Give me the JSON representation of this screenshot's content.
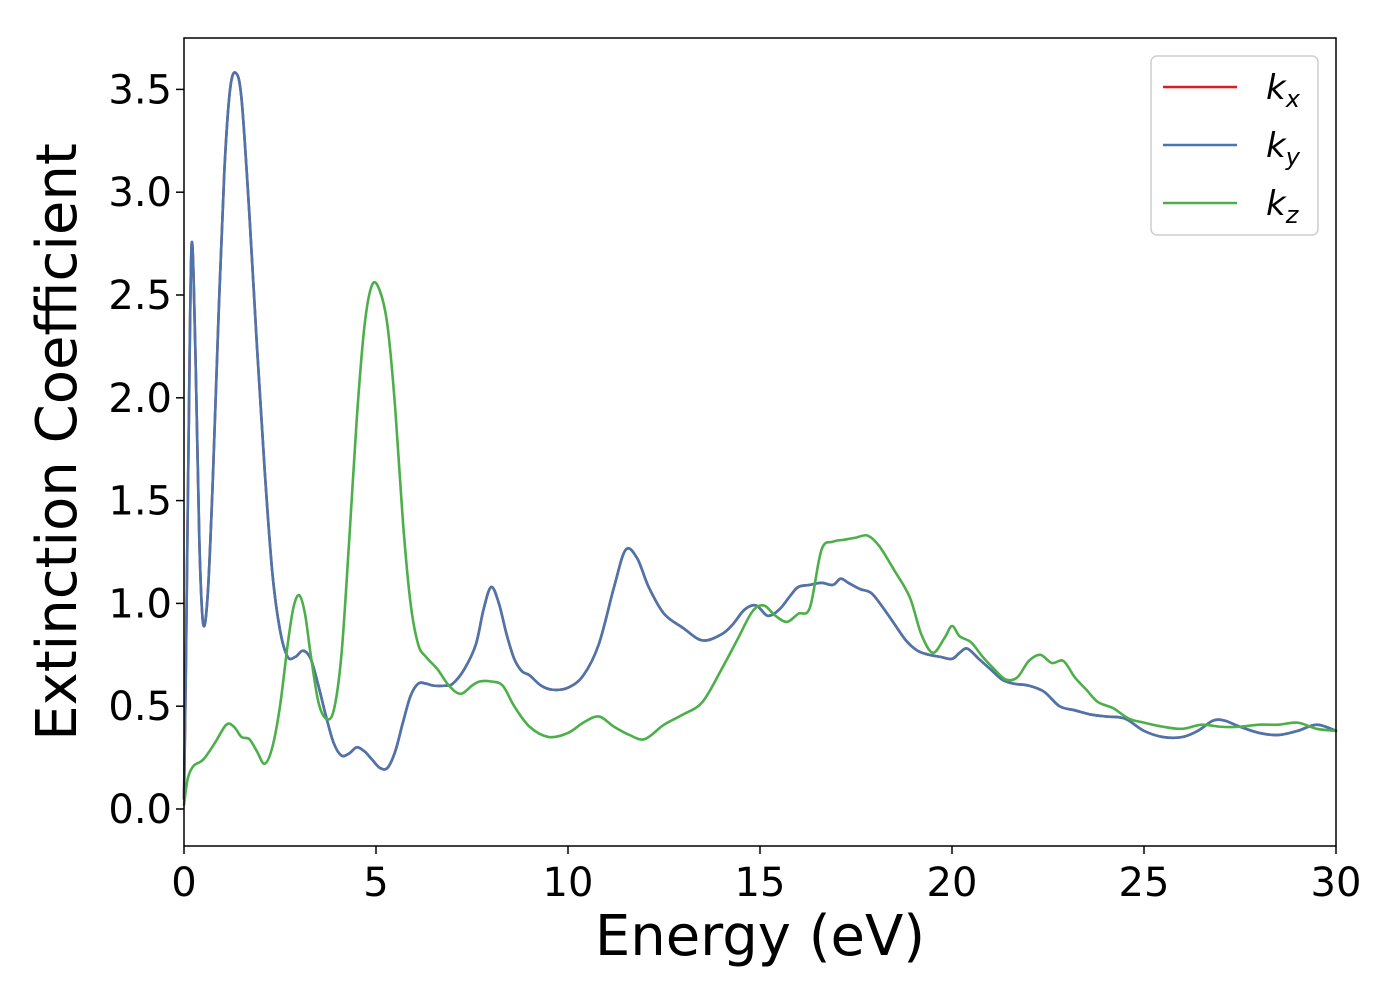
{
  "chart_data": {
    "type": "line",
    "title": "",
    "xlabel": "Energy (eV)",
    "ylabel": "Extinction Coefficient",
    "xlim": [
      0,
      30
    ],
    "ylim": [
      -0.18,
      3.75
    ],
    "xticks": [
      0,
      5,
      10,
      15,
      20,
      25,
      30
    ],
    "xtick_labels": [
      "0",
      "5",
      "10",
      "15",
      "20",
      "25",
      "30"
    ],
    "yticks": [
      0.0,
      0.5,
      1.0,
      1.5,
      2.0,
      2.5,
      3.0,
      3.5
    ],
    "ytick_labels": [
      "0.0",
      "0.5",
      "1.0",
      "1.5",
      "2.0",
      "2.5",
      "3.0",
      "3.5"
    ],
    "grid": false,
    "legend_position": "top-right",
    "series": [
      {
        "name": "k_x",
        "legend_base": "k",
        "legend_sub": "x",
        "color": "#e41a1c",
        "x": [
          0,
          0.05,
          0.12,
          0.2,
          0.3,
          0.4,
          0.5,
          0.62,
          0.75,
          0.9,
          1.05,
          1.2,
          1.35,
          1.5,
          1.7,
          1.9,
          2.1,
          2.3,
          2.5,
          2.7,
          2.9,
          3.1,
          3.3,
          3.5,
          3.7,
          3.9,
          4.1,
          4.3,
          4.5,
          4.7,
          4.9,
          5.1,
          5.3,
          5.5,
          5.7,
          5.9,
          6.1,
          6.3,
          6.5,
          6.8,
          7.0,
          7.3,
          7.6,
          7.8,
          8.0,
          8.2,
          8.4,
          8.6,
          8.8,
          9.0,
          9.3,
          9.6,
          10.0,
          10.4,
          10.8,
          11.2,
          11.5,
          11.8,
          12.1,
          12.5,
          13.0,
          13.5,
          14.0,
          14.3,
          14.6,
          14.9,
          15.2,
          15.5,
          15.8,
          16.0,
          16.3,
          16.6,
          16.9,
          17.1,
          17.3,
          17.6,
          17.9,
          18.2,
          18.5,
          18.8,
          19.1,
          19.4,
          19.7,
          20.0,
          20.2,
          20.4,
          20.7,
          21.0,
          21.3,
          21.6,
          22.0,
          22.4,
          22.8,
          23.2,
          23.6,
          24.0,
          24.5,
          25.0,
          25.5,
          26.0,
          26.4,
          26.8,
          27.1,
          27.5,
          28.0,
          28.5,
          29.0,
          29.5,
          30.0
        ],
        "y": [
          0.05,
          0.7,
          1.8,
          2.75,
          2.2,
          1.3,
          0.9,
          1.05,
          1.6,
          2.4,
          3.1,
          3.5,
          3.58,
          3.45,
          2.9,
          2.25,
          1.65,
          1.15,
          0.87,
          0.74,
          0.74,
          0.77,
          0.73,
          0.6,
          0.45,
          0.32,
          0.26,
          0.27,
          0.3,
          0.28,
          0.24,
          0.2,
          0.2,
          0.28,
          0.42,
          0.55,
          0.61,
          0.61,
          0.6,
          0.6,
          0.61,
          0.68,
          0.8,
          0.97,
          1.08,
          1.0,
          0.85,
          0.73,
          0.67,
          0.65,
          0.6,
          0.58,
          0.59,
          0.65,
          0.8,
          1.08,
          1.26,
          1.22,
          1.08,
          0.95,
          0.88,
          0.82,
          0.85,
          0.9,
          0.97,
          0.99,
          0.94,
          0.97,
          1.04,
          1.08,
          1.09,
          1.1,
          1.09,
          1.12,
          1.1,
          1.07,
          1.05,
          0.98,
          0.9,
          0.82,
          0.77,
          0.75,
          0.74,
          0.73,
          0.76,
          0.78,
          0.73,
          0.68,
          0.63,
          0.61,
          0.6,
          0.57,
          0.5,
          0.48,
          0.46,
          0.45,
          0.44,
          0.38,
          0.35,
          0.35,
          0.38,
          0.43,
          0.43,
          0.4,
          0.37,
          0.36,
          0.38,
          0.41,
          0.38
        ]
      },
      {
        "name": "k_y",
        "legend_base": "k",
        "legend_sub": "y",
        "color": "#4a76ad",
        "x": [
          0,
          0.05,
          0.12,
          0.2,
          0.3,
          0.4,
          0.5,
          0.62,
          0.75,
          0.9,
          1.05,
          1.2,
          1.35,
          1.5,
          1.7,
          1.9,
          2.1,
          2.3,
          2.5,
          2.7,
          2.9,
          3.1,
          3.3,
          3.5,
          3.7,
          3.9,
          4.1,
          4.3,
          4.5,
          4.7,
          4.9,
          5.1,
          5.3,
          5.5,
          5.7,
          5.9,
          6.1,
          6.3,
          6.5,
          6.8,
          7.0,
          7.3,
          7.6,
          7.8,
          8.0,
          8.2,
          8.4,
          8.6,
          8.8,
          9.0,
          9.3,
          9.6,
          10.0,
          10.4,
          10.8,
          11.2,
          11.5,
          11.8,
          12.1,
          12.5,
          13.0,
          13.5,
          14.0,
          14.3,
          14.6,
          14.9,
          15.2,
          15.5,
          15.8,
          16.0,
          16.3,
          16.6,
          16.9,
          17.1,
          17.3,
          17.6,
          17.9,
          18.2,
          18.5,
          18.8,
          19.1,
          19.4,
          19.7,
          20.0,
          20.2,
          20.4,
          20.7,
          21.0,
          21.3,
          21.6,
          22.0,
          22.4,
          22.8,
          23.2,
          23.6,
          24.0,
          24.5,
          25.0,
          25.5,
          26.0,
          26.4,
          26.8,
          27.1,
          27.5,
          28.0,
          28.5,
          29.0,
          29.5,
          30.0
        ],
        "y": [
          0.05,
          0.7,
          1.8,
          2.75,
          2.2,
          1.3,
          0.9,
          1.05,
          1.6,
          2.4,
          3.1,
          3.5,
          3.58,
          3.45,
          2.9,
          2.25,
          1.65,
          1.15,
          0.87,
          0.74,
          0.74,
          0.77,
          0.73,
          0.6,
          0.45,
          0.32,
          0.26,
          0.27,
          0.3,
          0.28,
          0.24,
          0.2,
          0.2,
          0.28,
          0.42,
          0.55,
          0.61,
          0.61,
          0.6,
          0.6,
          0.61,
          0.68,
          0.8,
          0.97,
          1.08,
          1.0,
          0.85,
          0.73,
          0.67,
          0.65,
          0.6,
          0.58,
          0.59,
          0.65,
          0.8,
          1.08,
          1.26,
          1.22,
          1.08,
          0.95,
          0.88,
          0.82,
          0.85,
          0.9,
          0.97,
          0.99,
          0.94,
          0.97,
          1.04,
          1.08,
          1.09,
          1.1,
          1.09,
          1.12,
          1.1,
          1.07,
          1.05,
          0.98,
          0.9,
          0.82,
          0.77,
          0.75,
          0.74,
          0.73,
          0.76,
          0.78,
          0.73,
          0.68,
          0.63,
          0.61,
          0.6,
          0.57,
          0.5,
          0.48,
          0.46,
          0.45,
          0.44,
          0.38,
          0.35,
          0.35,
          0.38,
          0.43,
          0.43,
          0.4,
          0.37,
          0.36,
          0.38,
          0.41,
          0.38
        ]
      },
      {
        "name": "k_z",
        "legend_base": "k",
        "legend_sub": "z",
        "color": "#4daf4a",
        "x": [
          0,
          0.1,
          0.25,
          0.5,
          0.8,
          1.1,
          1.3,
          1.5,
          1.7,
          1.9,
          2.1,
          2.3,
          2.5,
          2.7,
          2.85,
          3.0,
          3.15,
          3.3,
          3.5,
          3.7,
          3.9,
          4.1,
          4.3,
          4.5,
          4.7,
          4.9,
          5.1,
          5.3,
          5.5,
          5.7,
          5.9,
          6.1,
          6.3,
          6.6,
          6.9,
          7.2,
          7.5,
          7.7,
          8.0,
          8.3,
          8.6,
          9.0,
          9.5,
          10.0,
          10.4,
          10.8,
          11.2,
          11.6,
          12.0,
          12.5,
          13.0,
          13.5,
          14.0,
          14.4,
          14.8,
          15.1,
          15.4,
          15.7,
          16.0,
          16.3,
          16.6,
          16.9,
          17.2,
          17.5,
          17.8,
          18.1,
          18.5,
          18.9,
          19.2,
          19.5,
          19.8,
          20.0,
          20.2,
          20.5,
          20.8,
          21.1,
          21.4,
          21.7,
          22.0,
          22.3,
          22.6,
          22.9,
          23.2,
          23.5,
          23.8,
          24.2,
          24.6,
          25.0,
          25.5,
          26.0,
          26.5,
          27.0,
          27.5,
          28.0,
          28.5,
          29.0,
          29.5,
          30.0
        ],
        "y": [
          0.02,
          0.15,
          0.21,
          0.24,
          0.32,
          0.41,
          0.4,
          0.35,
          0.34,
          0.28,
          0.22,
          0.3,
          0.5,
          0.8,
          0.98,
          1.04,
          0.95,
          0.75,
          0.52,
          0.44,
          0.48,
          0.75,
          1.3,
          1.9,
          2.35,
          2.55,
          2.52,
          2.35,
          1.95,
          1.4,
          1.0,
          0.8,
          0.74,
          0.68,
          0.6,
          0.56,
          0.6,
          0.62,
          0.62,
          0.6,
          0.5,
          0.4,
          0.35,
          0.37,
          0.42,
          0.45,
          0.4,
          0.36,
          0.34,
          0.41,
          0.46,
          0.52,
          0.68,
          0.82,
          0.96,
          0.99,
          0.94,
          0.91,
          0.95,
          0.98,
          1.26,
          1.3,
          1.31,
          1.32,
          1.33,
          1.28,
          1.16,
          1.03,
          0.85,
          0.76,
          0.83,
          0.89,
          0.84,
          0.81,
          0.74,
          0.68,
          0.63,
          0.64,
          0.72,
          0.75,
          0.71,
          0.72,
          0.64,
          0.58,
          0.52,
          0.49,
          0.44,
          0.42,
          0.4,
          0.39,
          0.41,
          0.4,
          0.4,
          0.41,
          0.41,
          0.42,
          0.39,
          0.38
        ]
      }
    ]
  }
}
